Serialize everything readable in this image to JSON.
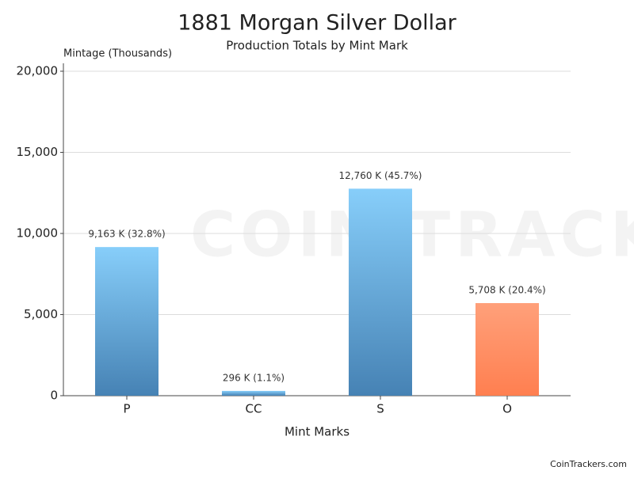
{
  "chart_data": {
    "type": "bar",
    "title": "1881 Morgan Silver Dollar",
    "subtitle": "Production Totals by Mint Mark",
    "y_label": "Mintage (Thousands)",
    "x_label": "Mint Marks",
    "categories": [
      "P",
      "CC",
      "S",
      "O"
    ],
    "values": [
      9163,
      296,
      12760,
      5708
    ],
    "value_labels": [
      "9,163 K (32.8%)",
      "296 K (1.1%)",
      "12,760 K (45.7%)",
      "5,708 K (20.4%)"
    ],
    "colors": [
      "#87cefa",
      "#87cefa",
      "#87cefa",
      "#ffa07a"
    ],
    "colors_bottom": [
      "#4682b4",
      "#4682b4",
      "#4682b4",
      "#ff7f50"
    ],
    "ylim": [
      0,
      20000
    ],
    "yticks": [
      0,
      {
        "value": 5000,
        "label": "5,000"
      },
      {
        "value": 10000,
        "label": "10,000"
      },
      {
        "value": 15000,
        "label": "15,000"
      },
      {
        "value": 20000,
        "label": "20,000"
      }
    ],
    "grid": true,
    "watermark": "COIN TRACKERS",
    "footer": "CoinTrackers.com"
  }
}
